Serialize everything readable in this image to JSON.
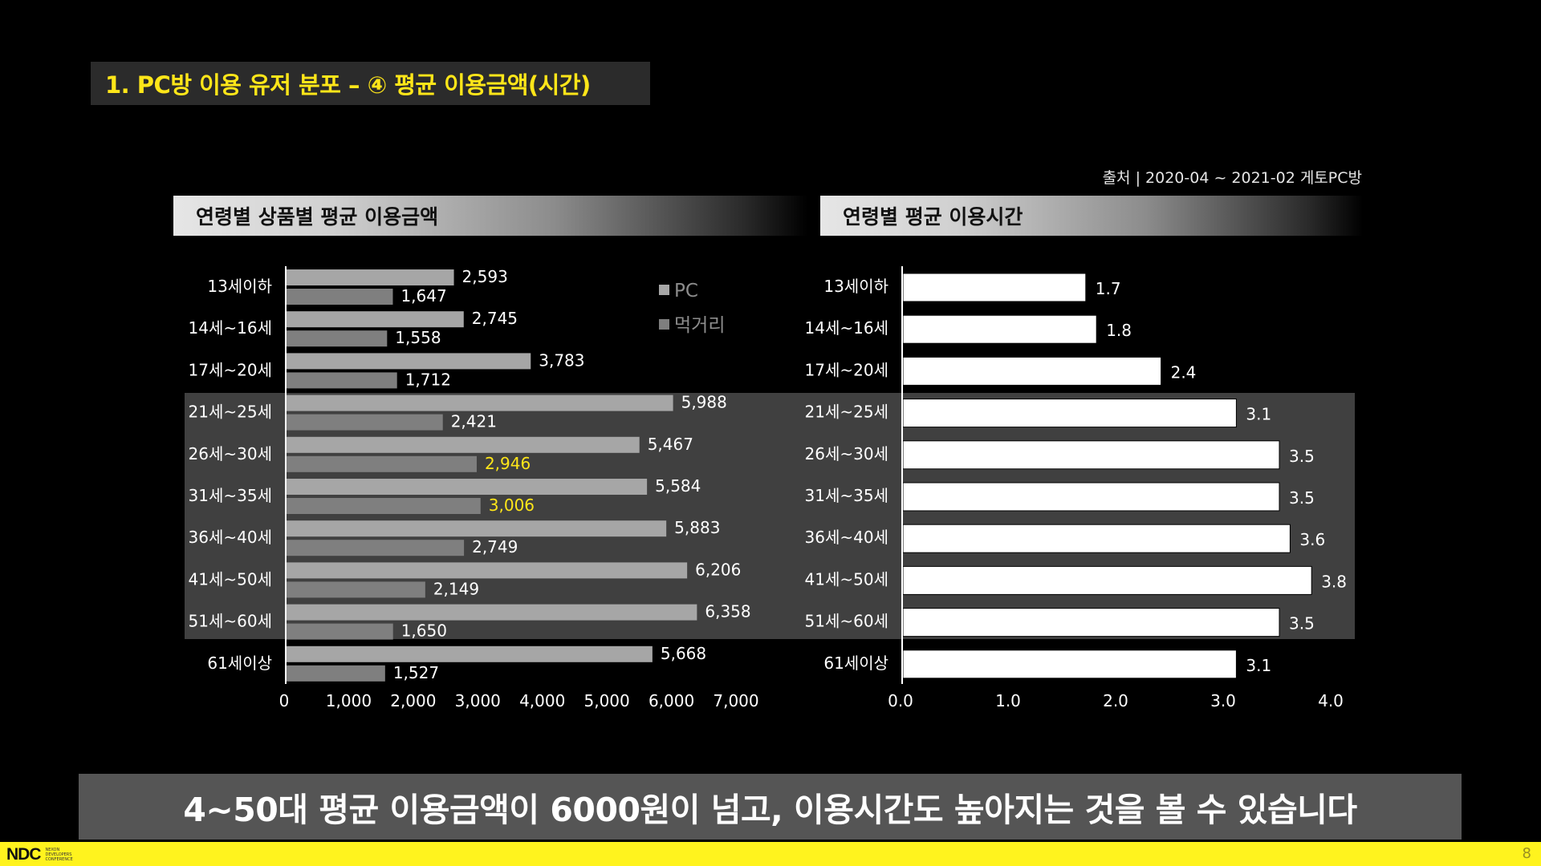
{
  "slide": {
    "title": "1. PC방 이용 유저 분포 – ④ 평균 이용금액(시간)",
    "source": "출처 | 2020-04 ~ 2021-02 게토PC방",
    "caption": "4~50대 평균 이용금액이 6000원이 넘고, 이용시간도 높아지는 것을 볼 수 있습니다",
    "page_number": "8"
  },
  "footer": {
    "logo_text": "NDC",
    "logo_subtext": "NEXON DEVELOPERS CONFERENCE"
  },
  "colors": {
    "accent_yellow": "#ffe619",
    "pc_bar": "#a6a6a6",
    "food_bar": "#7f7f7f",
    "time_bar": "#ffffff",
    "highlight_band": "#404040"
  },
  "chart_data": [
    {
      "type": "bar",
      "orientation": "horizontal",
      "title": "연령별 상품별 평균 이용금액",
      "categories": [
        "13세이하",
        "14세~16세",
        "17세~20세",
        "21세~25세",
        "26세~30세",
        "31세~35세",
        "36세~40세",
        "41세~50세",
        "51세~60세",
        "61세이상"
      ],
      "series": [
        {
          "name": "PC",
          "values": [
            2593,
            2745,
            3783,
            5988,
            5467,
            5584,
            5883,
            6206,
            6358,
            5668
          ],
          "labels": [
            "2,593",
            "2,745",
            "3,783",
            "5,988",
            "5,467",
            "5,584",
            "5,883",
            "6,206",
            "6,358",
            "5,668"
          ]
        },
        {
          "name": "먹거리",
          "values": [
            1647,
            1558,
            1712,
            2421,
            2946,
            3006,
            2749,
            2149,
            1650,
            1527
          ],
          "labels": [
            "1,647",
            "1,558",
            "1,712",
            "2,421",
            "2,946",
            "3,006",
            "2,749",
            "2,149",
            "1,650",
            "1,527"
          ]
        }
      ],
      "highlighted_values": [
        {
          "series": "먹거리",
          "category": "26세~30세"
        },
        {
          "series": "먹거리",
          "category": "31세~35세"
        }
      ],
      "xlim": [
        0,
        7000
      ],
      "xticks": [
        "0",
        "1,000",
        "2,000",
        "3,000",
        "4,000",
        "5,000",
        "6,000",
        "7,000"
      ],
      "legend": [
        "PC",
        "먹거리"
      ],
      "legend_position": "top-right",
      "highlighted_categories": [
        "21세~25세",
        "26세~30세",
        "31세~35세",
        "36세~40세",
        "41세~50세",
        "51세~60세"
      ]
    },
    {
      "type": "bar",
      "orientation": "horizontal",
      "title": "연령별 평균 이용시간",
      "categories": [
        "13세이하",
        "14세~16세",
        "17세~20세",
        "21세~25세",
        "26세~30세",
        "31세~35세",
        "36세~40세",
        "41세~50세",
        "51세~60세",
        "61세이상"
      ],
      "series": [
        {
          "values": [
            1.7,
            1.8,
            2.4,
            3.1,
            3.5,
            3.5,
            3.6,
            3.8,
            3.5,
            3.1
          ],
          "labels": [
            "1.7",
            "1.8",
            "2.4",
            "3.1",
            "3.5",
            "3.5",
            "3.6",
            "3.8",
            "3.5",
            "3.1"
          ]
        }
      ],
      "xlim": [
        0,
        4.0
      ],
      "xticks": [
        "0.0",
        "1.0",
        "2.0",
        "3.0",
        "4.0"
      ],
      "highlighted_categories": [
        "21세~25세",
        "26세~30세",
        "31세~35세",
        "36세~40세",
        "41세~50세",
        "51세~60세"
      ]
    }
  ]
}
